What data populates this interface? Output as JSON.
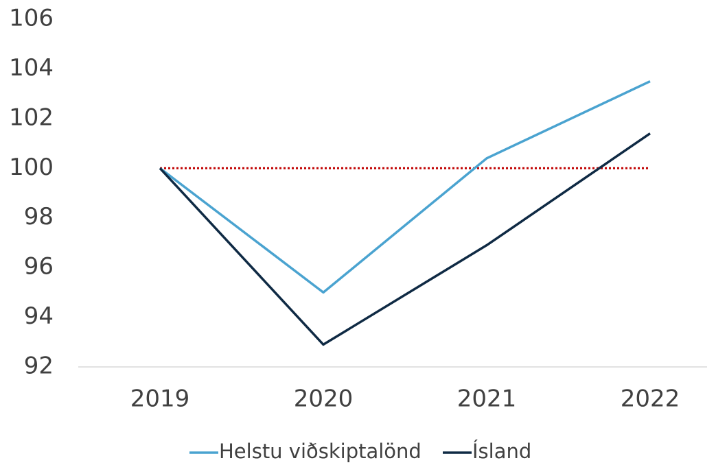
{
  "chart_data": {
    "type": "line",
    "categories": [
      "2019",
      "2020",
      "2021",
      "2022"
    ],
    "series": [
      {
        "name": "Helstu viðskiptalönd",
        "color": "#4aa3d0",
        "values": [
          100,
          95.0,
          100.4,
          103.5
        ]
      },
      {
        "name": "Ísland",
        "color": "#0f2a44",
        "values": [
          100,
          92.9,
          96.9,
          101.4
        ]
      }
    ],
    "reference_line": {
      "value": 100,
      "color": "#c00000"
    },
    "ylim": [
      92,
      106
    ],
    "yticks": [
      92,
      94,
      96,
      98,
      100,
      102,
      104,
      106
    ],
    "grid": false,
    "legend": "bottom"
  }
}
